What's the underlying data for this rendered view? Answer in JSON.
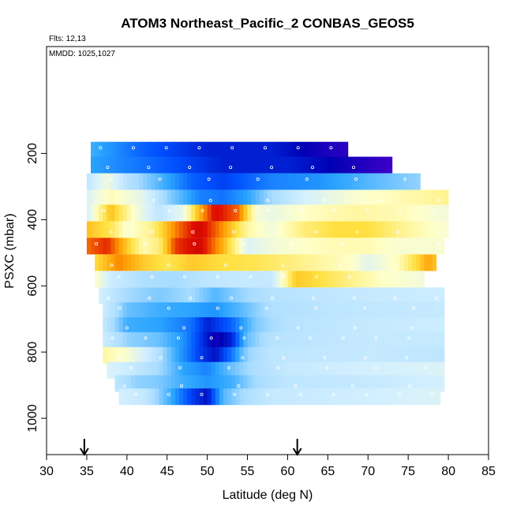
{
  "chart_data": {
    "type": "heatmap",
    "title": "ATOM3 Northeast_Pacific_2 CONBAS_GEOS5",
    "annotations": {
      "flights": "Flts: 12,13",
      "dates": "MMDD: 1025,1027"
    },
    "xlabel": "Latitude (deg N)",
    "ylabel": "PSXC (mbar)",
    "xlim": [
      30,
      85
    ],
    "ylim": [
      1000,
      0
    ],
    "x_ticks": [
      30,
      35,
      40,
      45,
      50,
      55,
      60,
      65,
      70,
      75,
      80,
      85
    ],
    "y_ticks": [
      200,
      400,
      600,
      800,
      1000
    ],
    "grid": false,
    "legend": "none",
    "arrow_markers_latitude": [
      34.7,
      61.2
    ],
    "colors": {
      "deep_violet": "#6a00d8",
      "navy": "#0000b4",
      "blue": "#0050ff",
      "azure": "#2aa4ff",
      "light_blue": "#a8dcff",
      "pale_cyan": "#d4f0ff",
      "pale_yellow": "#ffffc8",
      "yellow": "#ffe040",
      "orange": "#ff9a00",
      "red": "#e01000",
      "dark_red": "#c00000"
    },
    "series": [
      {
        "pressure": 190,
        "lat_range": [
          35.5,
          67.5
        ],
        "stops": [
          [
            35.5,
            1.4
          ],
          [
            42,
            1.9
          ],
          [
            50,
            2.3
          ],
          [
            58,
            2.3
          ],
          [
            64,
            2.6
          ],
          [
            67.5,
            2.7
          ]
        ]
      },
      {
        "pressure": 235,
        "lat_range": [
          35.5,
          73
        ],
        "stops": [
          [
            35.5,
            1.5
          ],
          [
            44,
            1.9
          ],
          [
            52,
            2.3
          ],
          [
            60,
            2.3
          ],
          [
            68,
            2.6
          ],
          [
            73,
            2.8
          ]
        ]
      },
      {
        "pressure": 285,
        "lat_range": [
          35,
          76.5
        ],
        "stops": [
          [
            35,
            0.6
          ],
          [
            37.5,
            -0.1
          ],
          [
            40,
            0.7
          ],
          [
            44,
            1.3
          ],
          [
            48,
            1.9
          ],
          [
            52,
            2.1
          ],
          [
            58,
            1.7
          ],
          [
            64,
            1.6
          ],
          [
            70,
            1.3
          ],
          [
            76.5,
            1.0
          ]
        ]
      },
      {
        "pressure": 335,
        "lat_range": [
          35,
          80
        ],
        "stops": [
          [
            35,
            0.2
          ],
          [
            38,
            -0.4
          ],
          [
            42,
            0.1
          ],
          [
            45,
            1.0
          ],
          [
            49,
            1.7
          ],
          [
            52,
            1.8
          ],
          [
            55,
            1.5
          ],
          [
            58,
            0.9
          ],
          [
            62,
            0.3
          ],
          [
            68,
            -0.2
          ],
          [
            74,
            -0.4
          ],
          [
            80,
            -0.6
          ]
        ]
      },
      {
        "pressure": 380,
        "lat_range": [
          35,
          80
        ],
        "stops": [
          [
            35,
            0.3
          ],
          [
            38,
            -1.3
          ],
          [
            41,
            -0.2
          ],
          [
            44,
            0.6
          ],
          [
            47,
            0.0
          ],
          [
            49,
            -1.4
          ],
          [
            51,
            -2.3
          ],
          [
            54,
            -1.8
          ],
          [
            56,
            -0.2
          ],
          [
            58,
            0.0
          ],
          [
            62,
            -0.3
          ],
          [
            68,
            -0.5
          ],
          [
            74,
            -0.4
          ],
          [
            80,
            -0.1
          ]
        ]
      },
      {
        "pressure": 430,
        "lat_range": [
          35,
          80
        ],
        "stops": [
          [
            35,
            -1.3
          ],
          [
            38,
            -0.9
          ],
          [
            40,
            -0.2
          ],
          [
            43,
            -0.6
          ],
          [
            46,
            -1.7
          ],
          [
            49,
            -2.4
          ],
          [
            52,
            -1.6
          ],
          [
            55,
            -0.5
          ],
          [
            58,
            -0.1
          ],
          [
            62,
            -0.7
          ],
          [
            66,
            -1.0
          ],
          [
            70,
            -1.0
          ],
          [
            74,
            -0.6
          ],
          [
            78,
            -0.3
          ],
          [
            80,
            -0.2
          ]
        ]
      },
      {
        "pressure": 480,
        "lat_range": [
          35,
          79.5
        ],
        "stops": [
          [
            35,
            -1.8
          ],
          [
            37.5,
            -2.1
          ],
          [
            39,
            -1.6
          ],
          [
            42,
            -0.4
          ],
          [
            44,
            -0.7
          ],
          [
            46,
            -2.0
          ],
          [
            49,
            -2.4
          ],
          [
            52,
            -1.4
          ],
          [
            55,
            0.2
          ],
          [
            58,
            -0.1
          ],
          [
            62,
            -0.3
          ],
          [
            66,
            -0.4
          ],
          [
            70,
            -0.4
          ],
          [
            74,
            -0.2
          ],
          [
            79.5,
            -0.2
          ]
        ]
      },
      {
        "pressure": 530,
        "lat_range": [
          36,
          78.5
        ],
        "stops": [
          [
            36,
            -1.0
          ],
          [
            39,
            -1.7
          ],
          [
            42,
            -1.2
          ],
          [
            45,
            -0.9
          ],
          [
            48,
            -1.2
          ],
          [
            52,
            -1.0
          ],
          [
            56,
            -0.9
          ],
          [
            60,
            -0.7
          ],
          [
            64,
            -0.5
          ],
          [
            68,
            -0.3
          ],
          [
            70,
            0.1
          ],
          [
            74,
            -0.4
          ],
          [
            77.5,
            -1.5
          ],
          [
            78.5,
            -1.2
          ]
        ]
      },
      {
        "pressure": 580,
        "lat_range": [
          36,
          77
        ],
        "stops": [
          [
            36,
            -0.3
          ],
          [
            38,
            0.4
          ],
          [
            42,
            0.8
          ],
          [
            46,
            0.9
          ],
          [
            50,
            0.6
          ],
          [
            54,
            0.5
          ],
          [
            58,
            0.5
          ],
          [
            61,
            -1.2
          ],
          [
            64,
            -1.0
          ],
          [
            68,
            -0.6
          ],
          [
            72,
            -0.3
          ],
          [
            77,
            -0.1
          ]
        ]
      },
      {
        "pressure": 630,
        "lat_range": [
          36.5,
          79.5
        ],
        "stops": [
          [
            36.5,
            0.3
          ],
          [
            40,
            0.9
          ],
          [
            44,
            1.1
          ],
          [
            48,
            0.9
          ],
          [
            51,
            1.3
          ],
          [
            54,
            1.0
          ],
          [
            58,
            0.7
          ],
          [
            64,
            0.6
          ],
          [
            70,
            0.5
          ],
          [
            79.5,
            0.4
          ]
        ]
      },
      {
        "pressure": 675,
        "lat_range": [
          37,
          79.5
        ],
        "stops": [
          [
            37,
            0.4
          ],
          [
            40,
            1.2
          ],
          [
            44,
            1.4
          ],
          [
            48,
            1.5
          ],
          [
            51,
            1.6
          ],
          [
            54,
            1.3
          ],
          [
            58,
            0.8
          ],
          [
            66,
            0.6
          ],
          [
            79.5,
            0.5
          ]
        ]
      },
      {
        "pressure": 720,
        "lat_range": [
          37,
          79.5
        ],
        "stops": [
          [
            37,
            0.5
          ],
          [
            40,
            1.4
          ],
          [
            44,
            1.5
          ],
          [
            48,
            1.8
          ],
          [
            50,
            2.3
          ],
          [
            53,
            1.9
          ],
          [
            56,
            1.1
          ],
          [
            60,
            0.7
          ],
          [
            70,
            0.5
          ],
          [
            79.5,
            0.4
          ]
        ]
      },
      {
        "pressure": 765,
        "lat_range": [
          37,
          79.5
        ],
        "stops": [
          [
            37,
            0.4
          ],
          [
            40,
            1.0
          ],
          [
            44,
            1.2
          ],
          [
            47,
            1.6
          ],
          [
            49,
            2.1
          ],
          [
            51,
            2.6
          ],
          [
            53,
            2.3
          ],
          [
            55,
            1.2
          ],
          [
            58,
            0.7
          ],
          [
            70,
            0.5
          ],
          [
            79.5,
            0.5
          ]
        ]
      },
      {
        "pressure": 810,
        "lat_range": [
          37,
          79.5
        ],
        "stops": [
          [
            37,
            -0.5
          ],
          [
            40,
            -0.2
          ],
          [
            43,
            0.5
          ],
          [
            46,
            1.4
          ],
          [
            49,
            2.1
          ],
          [
            51,
            2.4
          ],
          [
            53,
            1.8
          ],
          [
            55,
            1.0
          ],
          [
            58,
            0.6
          ],
          [
            70,
            0.5
          ],
          [
            79.5,
            0.6
          ]
        ]
      },
      {
        "pressure": 855,
        "lat_range": [
          37.5,
          79.5
        ],
        "stops": [
          [
            37.5,
            0.2
          ],
          [
            40,
            0.4
          ],
          [
            44,
            0.9
          ],
          [
            47,
            1.5
          ],
          [
            50,
            1.7
          ],
          [
            53,
            1.2
          ],
          [
            56,
            0.8
          ],
          [
            60,
            0.5
          ],
          [
            70,
            0.3
          ],
          [
            79.5,
            0.2
          ]
        ]
      },
      {
        "pressure": 895,
        "lat_range": [
          38.5,
          79.5
        ],
        "stops": [
          [
            38.5,
            0.6
          ],
          [
            41,
            1.0
          ],
          [
            44,
            1.1
          ],
          [
            47,
            1.4
          ],
          [
            50,
            1.6
          ],
          [
            53,
            1.4
          ],
          [
            56,
            0.9
          ],
          [
            60,
            0.6
          ],
          [
            70,
            0.5
          ],
          [
            79.5,
            0.3
          ]
        ]
      },
      {
        "pressure": 935,
        "lat_range": [
          39,
          79
        ],
        "stops": [
          [
            39,
            0.3
          ],
          [
            42,
            0.5
          ],
          [
            45,
            1.3
          ],
          [
            48,
            2.1
          ],
          [
            50,
            2.4
          ],
          [
            52,
            1.3
          ],
          [
            55,
            0.8
          ],
          [
            58,
            0.5
          ],
          [
            66,
            0.4
          ],
          [
            72,
            0.3
          ],
          [
            79,
            0.2
          ]
        ]
      }
    ]
  }
}
